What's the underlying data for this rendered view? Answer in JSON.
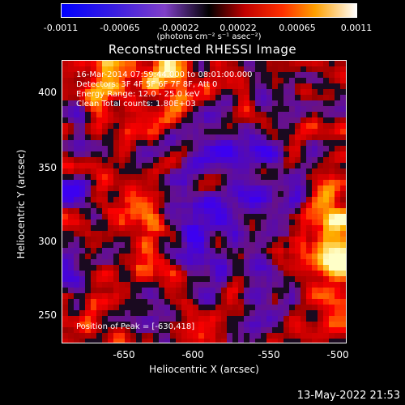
{
  "colorbar": {
    "ticks": [
      "-0.0011",
      "-0.00065",
      "-0.00022",
      "0.00022",
      "0.00065",
      "0.0011"
    ],
    "unit_label": "(photons cm⁻² s⁻¹ asec⁻²)"
  },
  "title": "Reconstructed RHESSI Image",
  "info": {
    "line1": "16-Mar-2014 07:59:44.000 to 08:01:00.000",
    "line2": "Detectors: 3F 4F 5F 6F 7F 8F, Att 0",
    "line3": "Energy Range: 12.0 - 25.0 keV",
    "line4": "Clean     Total counts: 1.80E+03",
    "peak": "Position of Peak = [-630,418]"
  },
  "chart_data": {
    "type": "heatmap",
    "title": "Reconstructed RHESSI Image",
    "xlabel": "Heliocentric X (arcsec)",
    "ylabel": "Heliocentric Y (arcsec)",
    "xlim": [
      -682,
      -496
    ],
    "ylim": [
      232,
      420
    ],
    "x_ticks": [
      "-650",
      "-600",
      "-550",
      "-500"
    ],
    "y_ticks": [
      "400",
      "350",
      "300",
      "250"
    ],
    "colorbar_range": [
      -0.0011,
      0.0011
    ],
    "peak_position": [
      -630,
      418
    ]
  },
  "timestamp": "13-May-2022 21:53"
}
